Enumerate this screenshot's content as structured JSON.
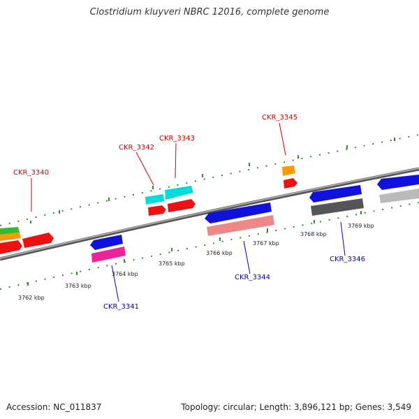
{
  "title": "Clostridium kluyveri NBRC 12016, complete genome",
  "footer": {
    "accession": "Accession: NC_011837",
    "summary": "Topology: circular; Length: 3,896,121 bp; Genes: 3,549"
  },
  "colors": {
    "backbone": "#8a8a8a",
    "forward_ticks": "#2e8b2e",
    "reverse_ticks": "#2e8b2e",
    "forward_label": "#cc0000",
    "reverse_label": "#0000bb"
  },
  "scale_labels": [
    "3762 kbp",
    "3763 kbp",
    "3764 kbp",
    "3765 kbp",
    "3766 kbp",
    "3767 kbp",
    "3768 kbp",
    "3769 kbp"
  ],
  "genes": [
    {
      "id": "CKR_3340",
      "strand": "forward",
      "color": "#ee1111"
    },
    {
      "id": "CKR_3341",
      "strand": "reverse",
      "color": "#1111dd"
    },
    {
      "id": "CKR_3342",
      "strand": "forward",
      "color": "#ee1111"
    },
    {
      "id": "CKR_3343",
      "strand": "forward",
      "color": "#ee1111"
    },
    {
      "id": "CKR_3344",
      "strand": "reverse",
      "color": "#1111dd"
    },
    {
      "id": "CKR_3345",
      "strand": "forward",
      "color": "#ee1111"
    },
    {
      "id": "CKR_3346",
      "strand": "reverse",
      "color": "#1111dd"
    }
  ]
}
